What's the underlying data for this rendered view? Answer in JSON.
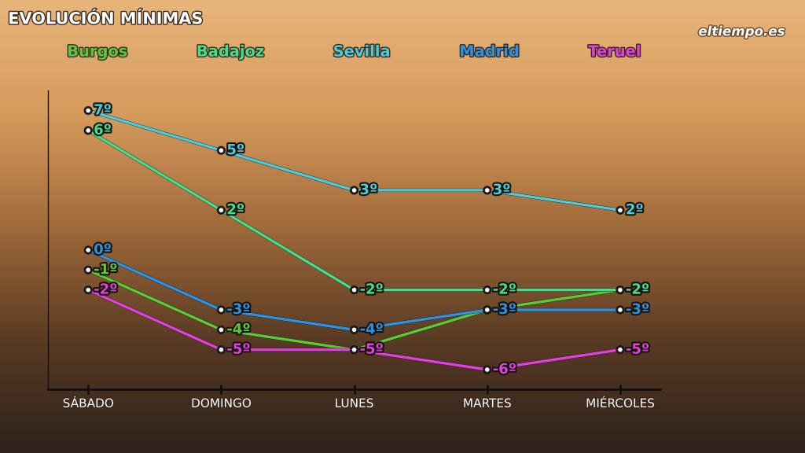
{
  "chart_data": {
    "type": "line",
    "title": "EVOLUCIÓN MÍNIMAS",
    "source": "eltiempo.es",
    "categories": [
      "SÁBADO",
      "DOMINGO",
      "LUNES",
      "MARTES",
      "MIÉRCOLES"
    ],
    "series": [
      {
        "name": "Burgos",
        "color": "#5cc936",
        "values": [
          -1,
          -4,
          -5,
          -3,
          -2
        ],
        "value_labels": [
          "-1º",
          "-4º",
          "-5º",
          "-3º",
          "-2º"
        ]
      },
      {
        "name": "Badajoz",
        "color": "#45de8e",
        "values": [
          6,
          2,
          -2,
          -2,
          -2
        ],
        "value_labels": [
          "6º",
          "2º",
          "-2º",
          "-2º",
          "-2º"
        ]
      },
      {
        "name": "Sevilla",
        "color": "#4ccbd9",
        "values": [
          7,
          5,
          3,
          3,
          2
        ],
        "value_labels": [
          "7º",
          "5º",
          "3º",
          "3º",
          "2º"
        ]
      },
      {
        "name": "Madrid",
        "color": "#2f92e0",
        "values": [
          0,
          -3,
          -4,
          -3,
          -3
        ],
        "value_labels": [
          "0º",
          "-3º",
          "-4º",
          "-3º",
          "-3º"
        ]
      },
      {
        "name": "Teruel",
        "color": "#e040dc",
        "values": [
          -2,
          -5,
          -5,
          -6,
          -5
        ],
        "value_labels": [
          "-2º",
          "-5º",
          "-5º",
          "-6º",
          "-5º"
        ]
      }
    ],
    "ylim": [
      -7,
      8
    ],
    "yticks": [],
    "tick_labels": "x",
    "data_labels": true,
    "grid": false,
    "legend": "upper center",
    "marker": "o",
    "line_style": "solid"
  }
}
